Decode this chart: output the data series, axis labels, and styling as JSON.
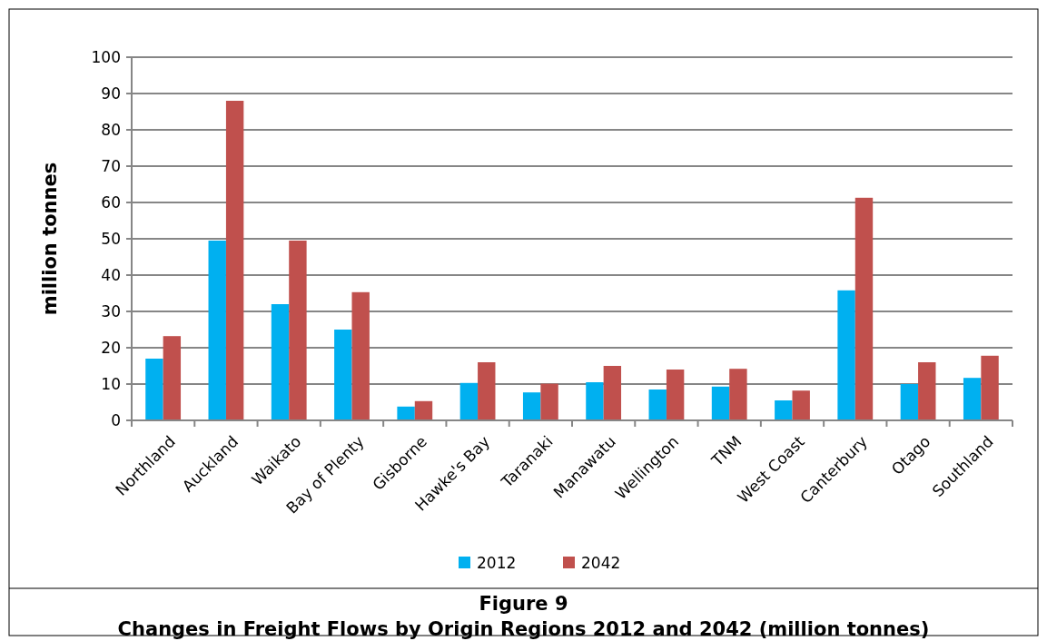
{
  "chart_data": {
    "type": "bar",
    "title": "Figure 9",
    "subtitle": "Changes in Freight Flows by Origin Regions 2012 and 2042 (million tonnes)",
    "ylabel": "million tonnes",
    "categories": [
      "Northland",
      "Auckland",
      "Waikato",
      "Bay of Plenty",
      "Gisborne",
      "Hawke's Bay",
      "Taranaki",
      "Manawatu",
      "Wellington",
      "TNM",
      "West Coast",
      "Canterbury",
      "Otago",
      "Southland"
    ],
    "series": [
      {
        "name": "2012",
        "color": "#00b0f0",
        "values": [
          17,
          49.5,
          32,
          25,
          3.8,
          10.3,
          7.7,
          10.5,
          8.5,
          9.3,
          5.5,
          35.8,
          10,
          11.7
        ]
      },
      {
        "name": "2042",
        "color": "#c0504d",
        "values": [
          23.2,
          88,
          49.5,
          35.3,
          5.3,
          16,
          10.1,
          15,
          14,
          14.2,
          8.2,
          61.3,
          16,
          17.8
        ]
      }
    ],
    "ylim": [
      0,
      100
    ],
    "yticks": [
      0,
      10,
      20,
      30,
      40,
      50,
      60,
      70,
      80,
      90,
      100
    ],
    "grid": "y",
    "legend": "bottom"
  }
}
